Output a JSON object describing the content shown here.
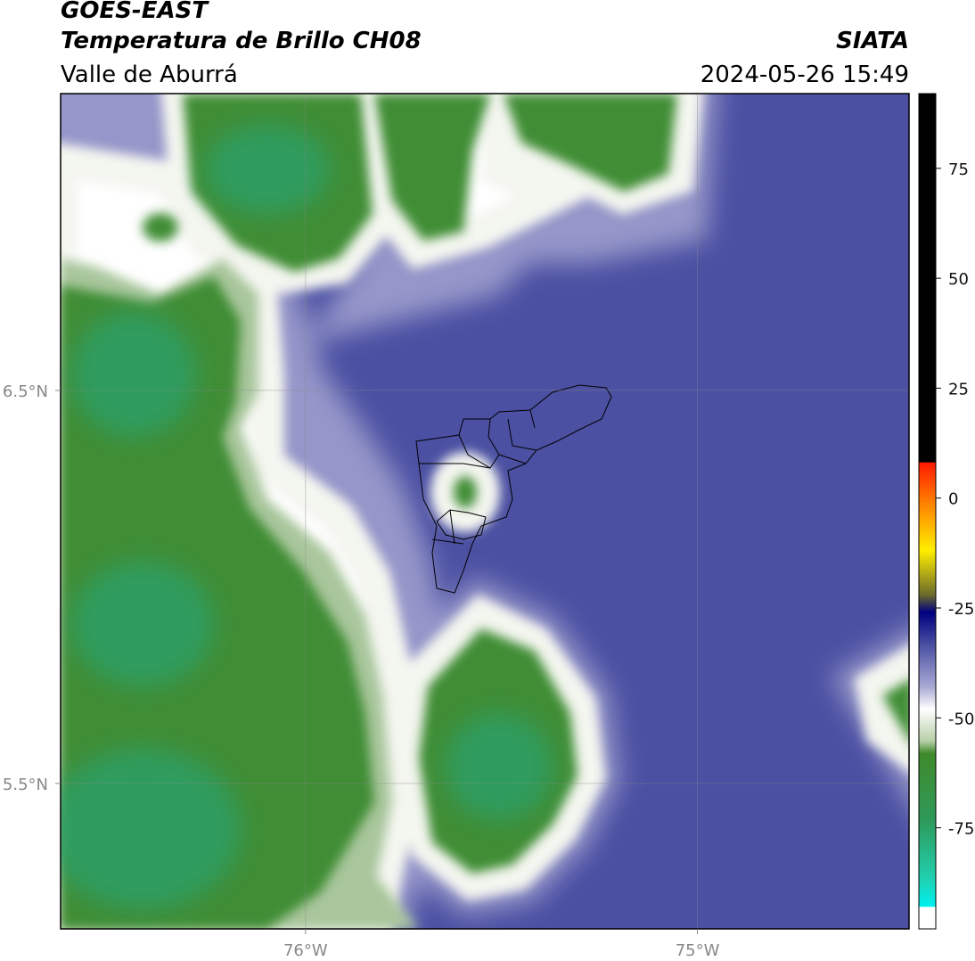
{
  "header": {
    "title": "GOES-EAST",
    "subtitle": "Temperatura de Brillo CH08",
    "region": "Valle de Aburrá",
    "source": "SIATA",
    "datetime": "2024-05-26 15:49"
  },
  "map": {
    "xlim": [
      -76.625,
      -74.46
    ],
    "ylim": [
      5.13,
      7.255
    ],
    "xticks": [
      {
        "value": -76,
        "label": "76°W"
      },
      {
        "value": -75,
        "label": "75°W"
      }
    ],
    "yticks": [
      {
        "value": 6.5,
        "label": "6.5°N"
      },
      {
        "value": 5.5,
        "label": "5.5°N"
      }
    ],
    "grid": true
  },
  "colorbar": {
    "lim": [
      -98,
      92
    ],
    "ticks": [
      75,
      50,
      25,
      0,
      -25,
      -50,
      -75
    ]
  }
}
